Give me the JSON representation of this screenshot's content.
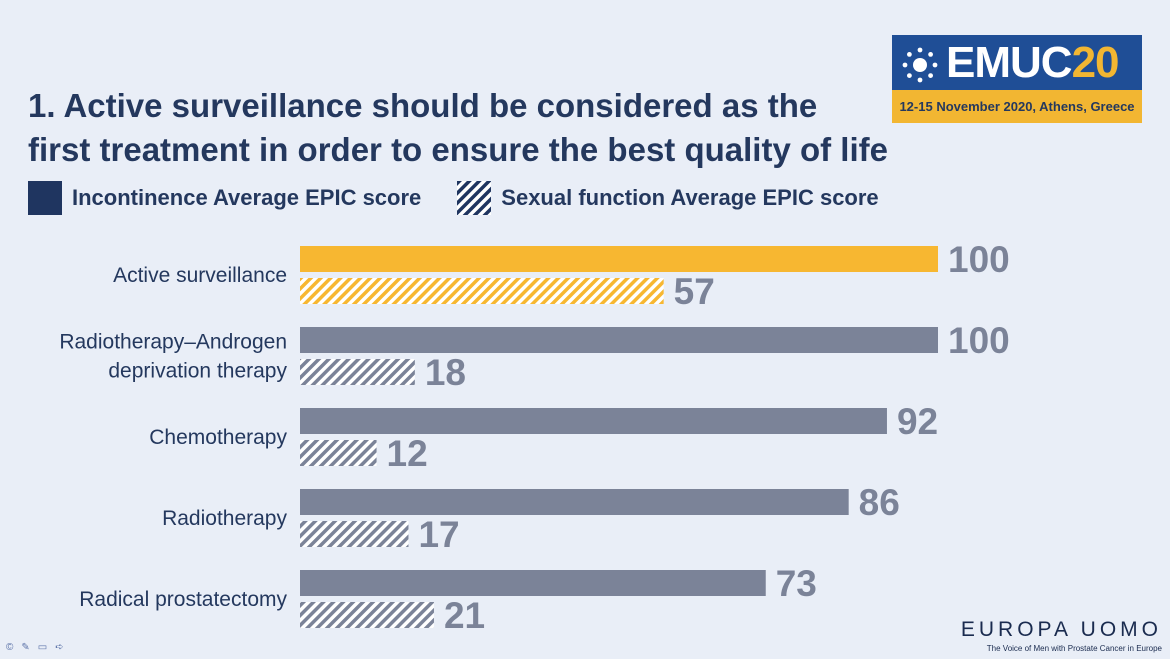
{
  "title": {
    "line1": "1. Active surveillance should be considered as the",
    "line2": "first treatment in order to ensure the best quality of life"
  },
  "legend": {
    "incontinence": "Incontinence Average EPIC score",
    "sexual": "Sexual function Average EPIC score"
  },
  "logo": {
    "name_part1": "EMUC",
    "name_part2": "20",
    "subtitle": "12-15 November 2020, Athens, Greece"
  },
  "footer": {
    "brand": "EUROPA UOMO",
    "tagline": "The Voice of Men with Prostate Cancer in Europe"
  },
  "colors": {
    "highlight": "#f7b731",
    "default": "#7b8398",
    "text": "#24385e",
    "background": "#e9eef7"
  },
  "chart_data": {
    "type": "bar",
    "orientation": "horizontal",
    "categories": [
      [
        "Active surveillance"
      ],
      [
        "Radiotherapy–Androgen",
        "deprivation therapy"
      ],
      [
        "Chemotherapy"
      ],
      [
        "Radiotherapy"
      ],
      [
        "Radical prostatectomy"
      ]
    ],
    "series": [
      {
        "name": "Incontinence Average EPIC score",
        "pattern": "solid",
        "values": [
          100,
          100,
          92,
          86,
          73
        ]
      },
      {
        "name": "Sexual function Average EPIC score",
        "pattern": "hatched",
        "values": [
          57,
          18,
          12,
          17,
          21
        ]
      }
    ],
    "highlight_index": 0,
    "xlim": [
      0,
      100
    ],
    "title": "1. Active surveillance should be considered as the first treatment in order to ensure the best quality of life"
  }
}
